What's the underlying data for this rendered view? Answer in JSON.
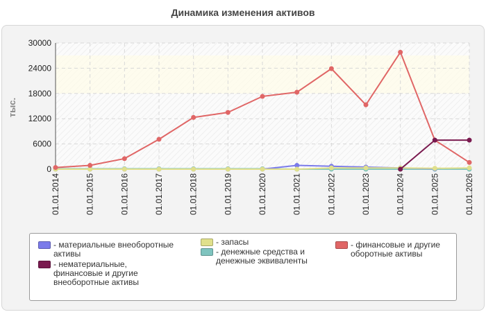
{
  "title": "Динамика изменения активов",
  "chart_data": {
    "type": "line",
    "title": "Динамика изменения активов",
    "ylabel": "тыс.",
    "xlabel": "",
    "ylim": [
      0,
      30000
    ],
    "yticks": [
      0,
      6000,
      12000,
      18000,
      24000,
      30000
    ],
    "grid": true,
    "legend_position": "bottom",
    "categories": [
      "01.01.2014",
      "01.01.2015",
      "01.01.2016",
      "01.01.2017",
      "01.01.2018",
      "01.01.2019",
      "01.01.2020",
      "01.01.2021",
      "01.01.2022",
      "01.01.2023",
      "01.01.2024",
      "01.01.2025",
      "01.01.2026"
    ],
    "series": [
      {
        "name": "- финансовые и другие оборотные активы",
        "color": "#e06666",
        "values": [
          400,
          900,
          2500,
          7100,
          12300,
          13500,
          17300,
          18300,
          23900,
          15300,
          27800,
          6900,
          1600
        ]
      },
      {
        "name": "- материальные внеоборотные активы",
        "color": "#7b7bea",
        "values": [
          0,
          0,
          0,
          0,
          0,
          0,
          0,
          900,
          700,
          500,
          300,
          100,
          null
        ]
      },
      {
        "name": "- запасы",
        "color": "#e0e08c",
        "values": [
          0,
          0,
          0,
          0,
          0,
          0,
          0,
          0,
          300,
          300,
          300,
          200,
          300
        ]
      },
      {
        "name": "- нематериальные, финансовые и другие внеоборотные активы",
        "color": "#7a1a4f",
        "values": [
          null,
          null,
          null,
          null,
          null,
          null,
          null,
          null,
          null,
          null,
          0,
          6900,
          6900
        ]
      },
      {
        "name": "- денежные средства и денежные эквиваленты",
        "color": "#7fc4bf",
        "values": [
          100,
          100,
          100,
          100,
          100,
          100,
          100,
          0,
          0,
          0,
          0,
          0,
          0
        ]
      }
    ]
  },
  "legend": [
    {
      "swatch": "#7b7bea",
      "lines": [
        "- материальные внеоборотные",
        "активы"
      ]
    },
    {
      "swatch": "#7a1a4f",
      "lines": [
        "- нематериальные,",
        "финансовые и другие",
        "внеоборотные активы"
      ]
    },
    {
      "swatch": "#e0e08c",
      "lines": [
        "- запасы"
      ]
    },
    {
      "swatch": "#7fc4bf",
      "lines": [
        "- денежные средства и",
        "денежные эквиваленты"
      ]
    },
    {
      "swatch": "#e06666",
      "lines": [
        "- финансовые и другие",
        "оборотные активы"
      ]
    }
  ]
}
